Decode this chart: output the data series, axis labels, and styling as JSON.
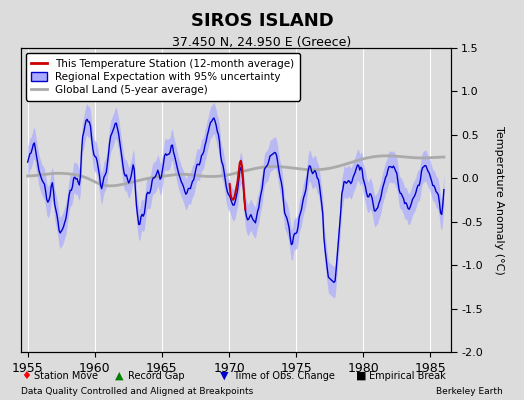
{
  "title": "SIROS ISLAND",
  "subtitle": "37.450 N, 24.950 E (Greece)",
  "ylabel": "Temperature Anomaly (°C)",
  "ylim": [
    -2.0,
    1.5
  ],
  "xlim": [
    1954.5,
    1986.5
  ],
  "xticks": [
    1955,
    1960,
    1965,
    1970,
    1975,
    1980,
    1985
  ],
  "yticks_right": [
    -2.0,
    -1.5,
    -1.0,
    -0.5,
    0.0,
    0.5,
    1.0,
    1.5
  ],
  "bg_color": "#dcdcdc",
  "plot_bg_color": "#dcdcdc",
  "blue_line_color": "#0000cc",
  "blue_fill_color": "#aaaaff",
  "red_line_color": "#cc0000",
  "gray_line_color": "#aaaaaa",
  "footnote_left": "Data Quality Controlled and Aligned at Breakpoints",
  "footnote_right": "Berkeley Earth",
  "legend_items": [
    "This Temperature Station (12-month average)",
    "Regional Expectation with 95% uncertainty",
    "Global Land (5-year average)"
  ],
  "bottom_legend": [
    "Station Move",
    "Record Gap",
    "Time of Obs. Change",
    "Empirical Break"
  ]
}
